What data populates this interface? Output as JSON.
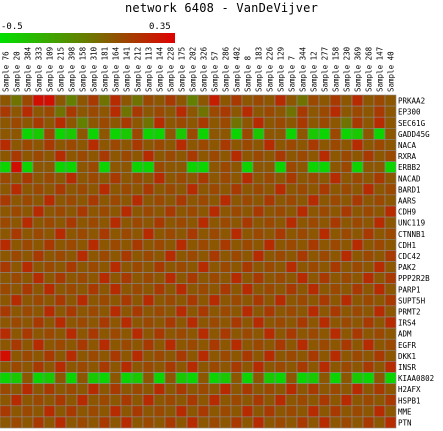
{
  "title": "network 6408 - VanDeVijver",
  "legend": {
    "min_label": "-0.5",
    "max_label": "0.35",
    "low_color": "#00e000",
    "high_color": "#e00000"
  },
  "chart_data": {
    "type": "heatmap",
    "title": "network 6408 - VanDeVijver",
    "value_range": [
      -0.5,
      0.35
    ],
    "columns": [
      "Sample 76",
      "Sample 20",
      "Sample 384",
      "Sample 333",
      "Sample 109",
      "Sample 215",
      "Sample 398",
      "Sample 158",
      "Sample 310",
      "Sample 181",
      "Sample 164",
      "Sample 141",
      "Sample 212",
      "Sample 113",
      "Sample 144",
      "Sample 228",
      "Sample 175",
      "Sample 202",
      "Sample 326",
      "Sample 57",
      "Sample 286",
      "Sample 402",
      "Sample 8",
      "Sample 183",
      "Sample 226",
      "Sample 129",
      "Sample 7",
      "Sample 344",
      "Sample 12",
      "Sample 277",
      "Sample 158",
      "Sample 230",
      "Sample 369",
      "Sample 268",
      "Sample 147",
      "Sample 40"
    ],
    "rows": [
      "PRKAA2",
      "EP300",
      "SEC61G",
      "GADD45G",
      "NACA",
      "RXRA",
      "ERBB2",
      "NACAD",
      "BARD1",
      "AARS",
      "CDH9",
      "UNC119",
      "CTNNB1",
      "CDH1",
      "CDC42",
      "PAK2",
      "PPP2R2B",
      "PARP1",
      "SUPT5H",
      "PRMT2",
      "IRS4",
      "ADM",
      "EGFR",
      "DKK1",
      "INSR",
      "KIAA0802",
      "H2AFX",
      "HSPB1",
      "MME",
      "PTN"
    ],
    "values": [
      [
        0.05,
        -0.05,
        0.1,
        0.3,
        0.3,
        0.05,
        -0.1,
        0.05,
        0.15,
        -0.05,
        0.2,
        0.05,
        -0.05,
        0.1,
        0.05,
        0.15,
        0.05,
        -0.1,
        0.05,
        0.25,
        0.05,
        0.15,
        0.05,
        0.1,
        0.05,
        0.2,
        0.05,
        -0.05,
        0.1,
        0.05,
        0.15,
        0.05,
        0.2,
        0.05,
        0.1,
        0.05
      ],
      [
        0.15,
        0.05,
        0.2,
        0.05,
        0.1,
        -0.05,
        0.15,
        0.05,
        0.1,
        0.05,
        0.2,
        -0.05,
        0.15,
        0.05,
        0.1,
        0.05,
        0.2,
        0.05,
        -0.05,
        0.1,
        0.15,
        0.05,
        0.2,
        0.05,
        0.1,
        0.05,
        -0.05,
        0.15,
        0.05,
        0.1,
        0.2,
        0.05,
        0.1,
        0.05,
        0.15,
        0.05
      ],
      [
        0.05,
        0.1,
        0.05,
        0.15,
        0.05,
        0.2,
        0.05,
        -0.1,
        0.05,
        0.1,
        0.05,
        0.15,
        0.05,
        -0.05,
        0.2,
        0.05,
        0.1,
        0.05,
        0.15,
        0.05,
        0.1,
        -0.05,
        0.05,
        0.2,
        0.05,
        0.1,
        0.05,
        0.15,
        0.05,
        0.1,
        0.05,
        -0.05,
        0.15,
        0.05,
        0.2,
        0.05
      ],
      [
        0.05,
        0.05,
        -0.45,
        -0.4,
        0.1,
        -0.45,
        -0.4,
        0.05,
        -0.45,
        0.05,
        -0.45,
        -0.4,
        0.1,
        -0.45,
        -0.45,
        0.05,
        -0.4,
        0.1,
        -0.45,
        0.05,
        0.05,
        -0.45,
        0.1,
        -0.4,
        0.05,
        0.05,
        -0.45,
        0.05,
        -0.4,
        -0.45,
        0.1,
        -0.45,
        -0.4,
        0.05,
        -0.45,
        0.05
      ],
      [
        0.2,
        0.05,
        0.1,
        0.05,
        0.15,
        0.05,
        0.1,
        0.05,
        0.2,
        0.05,
        0.1,
        0.05,
        0.15,
        0.05,
        0.1,
        0.05,
        0.2,
        0.05,
        0.1,
        0.05,
        0.15,
        0.05,
        0.1,
        0.05,
        0.2,
        0.05,
        0.1,
        0.05,
        0.15,
        0.05,
        0.1,
        0.05,
        0.2,
        0.05,
        0.1,
        0.05
      ],
      [
        0.05,
        0.15,
        0.05,
        0.1,
        0.05,
        0.2,
        0.05,
        0.1,
        0.05,
        0.15,
        0.05,
        0.1,
        0.05,
        0.2,
        0.05,
        0.1,
        0.05,
        0.15,
        0.05,
        0.1,
        0.05,
        0.2,
        0.05,
        0.1,
        0.05,
        0.15,
        0.05,
        0.1,
        0.05,
        0.2,
        0.05,
        0.1,
        0.05,
        0.15,
        0.05,
        0.1
      ],
      [
        -0.45,
        0.3,
        -0.45,
        0.05,
        0.05,
        -0.45,
        -0.45,
        0.05,
        0.1,
        -0.45,
        0.05,
        0.05,
        -0.45,
        -0.45,
        0.1,
        0.05,
        0.05,
        -0.45,
        -0.45,
        0.05,
        0.1,
        0.05,
        -0.45,
        0.05,
        0.05,
        -0.45,
        0.1,
        0.05,
        -0.45,
        -0.45,
        0.05,
        0.1,
        -0.45,
        0.05,
        0.05,
        -0.45
      ],
      [
        0.1,
        0.05,
        0.15,
        0.05,
        0.1,
        0.05,
        0.2,
        0.05,
        0.1,
        0.05,
        0.15,
        0.05,
        0.1,
        0.05,
        0.2,
        0.05,
        0.1,
        0.05,
        0.15,
        0.05,
        0.1,
        0.05,
        0.2,
        0.05,
        0.1,
        0.05,
        0.15,
        0.05,
        0.1,
        0.05,
        0.2,
        0.05,
        0.1,
        0.05,
        0.15,
        0.05
      ],
      [
        0.05,
        0.2,
        0.05,
        0.1,
        0.05,
        0.15,
        0.05,
        0.1,
        0.05,
        0.2,
        0.05,
        0.1,
        0.05,
        0.15,
        0.05,
        0.1,
        0.05,
        0.2,
        0.05,
        0.1,
        0.05,
        0.15,
        0.05,
        0.1,
        0.05,
        0.2,
        0.05,
        0.1,
        0.05,
        0.15,
        0.05,
        0.1,
        0.05,
        0.2,
        0.05,
        0.1
      ],
      [
        0.15,
        0.05,
        0.1,
        0.05,
        0.2,
        0.05,
        0.1,
        0.05,
        0.15,
        0.05,
        0.1,
        0.05,
        0.2,
        0.05,
        0.1,
        0.05,
        0.15,
        0.05,
        0.1,
        0.05,
        0.2,
        0.05,
        0.1,
        0.05,
        0.15,
        0.05,
        0.1,
        0.05,
        0.2,
        0.05,
        0.1,
        0.05,
        0.15,
        0.05,
        0.1,
        0.05
      ],
      [
        0.05,
        0.1,
        0.05,
        0.2,
        0.05,
        0.1,
        0.05,
        0.15,
        0.05,
        0.1,
        0.05,
        0.2,
        0.05,
        0.1,
        0.05,
        0.15,
        0.05,
        0.1,
        0.05,
        0.2,
        0.05,
        0.1,
        0.05,
        0.15,
        0.05,
        0.1,
        0.05,
        0.2,
        0.05,
        0.1,
        0.05,
        0.15,
        0.05,
        0.1,
        0.05,
        0.2
      ],
      [
        0.1,
        0.05,
        0.2,
        0.05,
        0.1,
        0.05,
        0.15,
        0.05,
        0.1,
        0.05,
        0.2,
        0.05,
        0.1,
        0.05,
        0.15,
        0.05,
        0.1,
        0.05,
        0.2,
        0.05,
        0.1,
        0.05,
        0.15,
        0.05,
        0.1,
        0.05,
        0.2,
        0.05,
        0.1,
        0.05,
        0.15,
        0.05,
        0.1,
        0.05,
        0.2,
        0.05
      ],
      [
        0.05,
        0.15,
        0.05,
        0.1,
        0.05,
        0.2,
        0.05,
        0.1,
        0.05,
        0.15,
        0.05,
        0.1,
        0.05,
        0.2,
        0.05,
        0.1,
        0.05,
        0.15,
        0.05,
        0.1,
        0.05,
        0.2,
        0.05,
        0.1,
        0.05,
        0.15,
        0.05,
        0.1,
        0.05,
        0.2,
        0.05,
        0.1,
        0.05,
        0.15,
        0.05,
        0.1
      ],
      [
        0.2,
        0.05,
        0.1,
        0.05,
        0.15,
        0.05,
        0.1,
        0.05,
        0.2,
        0.05,
        0.1,
        0.05,
        0.15,
        0.05,
        0.1,
        0.05,
        0.2,
        0.05,
        0.1,
        0.05,
        0.15,
        0.05,
        0.1,
        0.05,
        0.2,
        0.05,
        0.1,
        0.05,
        0.15,
        0.05,
        0.1,
        0.05,
        0.2,
        0.05,
        0.1,
        0.05
      ],
      [
        0.05,
        0.1,
        0.05,
        0.15,
        0.05,
        0.1,
        0.05,
        0.2,
        0.05,
        0.1,
        0.05,
        0.15,
        0.05,
        0.1,
        0.05,
        0.2,
        0.05,
        0.1,
        0.05,
        0.15,
        0.05,
        0.1,
        0.05,
        0.2,
        0.05,
        0.1,
        0.05,
        0.15,
        0.05,
        0.1,
        0.05,
        0.2,
        0.05,
        0.1,
        0.05,
        0.15
      ],
      [
        0.15,
        0.05,
        0.2,
        0.05,
        0.1,
        0.05,
        0.15,
        0.05,
        0.1,
        0.05,
        0.2,
        0.05,
        0.1,
        0.05,
        0.15,
        0.05,
        0.1,
        0.05,
        0.2,
        0.05,
        0.1,
        0.05,
        0.15,
        0.05,
        0.1,
        0.05,
        0.2,
        0.05,
        0.1,
        0.05,
        0.15,
        0.05,
        0.1,
        0.05,
        0.2,
        0.05
      ],
      [
        0.05,
        0.1,
        0.05,
        0.2,
        0.05,
        0.15,
        0.05,
        0.1,
        0.05,
        0.2,
        0.05,
        0.15,
        0.05,
        0.1,
        0.05,
        0.2,
        0.05,
        0.15,
        0.05,
        0.1,
        0.05,
        0.2,
        0.05,
        0.15,
        0.05,
        0.1,
        0.05,
        0.2,
        0.05,
        0.15,
        0.05,
        0.1,
        0.05,
        0.2,
        0.05,
        0.15
      ],
      [
        0.1,
        0.05,
        0.15,
        0.05,
        0.2,
        0.05,
        0.1,
        0.05,
        0.15,
        0.05,
        0.2,
        0.05,
        0.1,
        0.05,
        0.15,
        0.05,
        0.2,
        0.05,
        0.1,
        0.05,
        0.15,
        0.05,
        0.2,
        0.05,
        0.1,
        0.05,
        0.15,
        0.05,
        0.2,
        0.05,
        0.1,
        0.05,
        0.15,
        0.05,
        0.2,
        0.05
      ],
      [
        0.05,
        0.2,
        0.05,
        0.1,
        0.05,
        0.15,
        0.05,
        0.2,
        0.05,
        0.1,
        0.05,
        0.15,
        0.05,
        0.2,
        0.05,
        0.1,
        0.05,
        0.15,
        0.05,
        0.2,
        0.05,
        0.1,
        0.05,
        0.15,
        0.05,
        0.2,
        0.05,
        0.1,
        0.05,
        0.15,
        0.05,
        0.2,
        0.05,
        0.1,
        0.05,
        0.15
      ],
      [
        0.15,
        0.05,
        0.1,
        0.05,
        0.2,
        0.05,
        0.15,
        0.05,
        0.1,
        0.05,
        0.2,
        0.05,
        0.15,
        0.05,
        0.1,
        0.05,
        0.2,
        0.05,
        0.15,
        0.05,
        0.1,
        0.05,
        0.2,
        0.05,
        0.15,
        0.05,
        0.1,
        0.05,
        0.2,
        0.05,
        0.15,
        0.05,
        0.1,
        0.05,
        0.2,
        0.05
      ],
      [
        0.05,
        0.1,
        0.05,
        0.15,
        0.05,
        0.2,
        0.05,
        0.1,
        0.05,
        0.15,
        0.05,
        0.2,
        0.05,
        0.1,
        0.05,
        0.15,
        0.05,
        0.2,
        0.05,
        0.1,
        0.05,
        0.15,
        0.05,
        0.2,
        0.05,
        0.1,
        0.05,
        0.15,
        0.05,
        0.2,
        0.05,
        0.1,
        0.05,
        0.15,
        0.05,
        0.2
      ],
      [
        0.2,
        0.05,
        0.15,
        0.05,
        0.1,
        0.05,
        0.2,
        0.05,
        0.15,
        0.05,
        0.1,
        0.05,
        0.2,
        0.05,
        0.15,
        0.05,
        0.1,
        0.05,
        0.2,
        0.05,
        0.15,
        0.05,
        0.1,
        0.05,
        0.2,
        0.05,
        0.15,
        0.05,
        0.1,
        0.05,
        0.2,
        0.05,
        0.15,
        0.05,
        0.1,
        0.05
      ],
      [
        0.05,
        0.15,
        0.05,
        0.2,
        0.05,
        0.1,
        0.05,
        0.15,
        0.05,
        0.2,
        0.05,
        0.1,
        0.05,
        0.15,
        0.05,
        0.2,
        0.05,
        0.1,
        0.05,
        0.15,
        0.05,
        0.2,
        0.05,
        0.1,
        0.05,
        0.15,
        0.05,
        0.2,
        0.05,
        0.1,
        0.05,
        0.15,
        0.05,
        0.2,
        0.05,
        0.1
      ],
      [
        0.3,
        0.05,
        0.1,
        0.05,
        0.15,
        0.05,
        0.2,
        0.05,
        0.1,
        0.05,
        0.15,
        0.05,
        0.2,
        0.05,
        0.1,
        0.05,
        0.15,
        0.05,
        0.2,
        0.05,
        0.1,
        0.05,
        0.15,
        0.05,
        0.2,
        0.05,
        0.1,
        0.05,
        0.15,
        0.05,
        0.2,
        0.05,
        0.1,
        0.05,
        0.15,
        0.05
      ],
      [
        0.05,
        0.1,
        0.05,
        0.15,
        0.05,
        0.2,
        0.05,
        0.1,
        0.05,
        0.15,
        0.05,
        0.2,
        0.05,
        0.1,
        0.05,
        0.15,
        0.05,
        0.2,
        0.05,
        0.1,
        0.05,
        0.15,
        0.05,
        0.2,
        0.05,
        0.1,
        0.05,
        0.15,
        0.05,
        0.2,
        0.05,
        0.1,
        0.05,
        0.15,
        0.05,
        0.2
      ],
      [
        -0.45,
        -0.4,
        0.05,
        -0.45,
        -0.4,
        0.05,
        -0.45,
        0.05,
        -0.4,
        -0.45,
        0.05,
        -0.45,
        -0.4,
        0.05,
        -0.45,
        0.05,
        -0.4,
        -0.45,
        0.05,
        -0.45,
        -0.4,
        0.05,
        -0.45,
        0.05,
        -0.4,
        -0.45,
        0.05,
        -0.45,
        -0.4,
        0.05,
        -0.45,
        0.05,
        -0.4,
        -0.45,
        0.05,
        -0.45
      ],
      [
        0.1,
        0.05,
        0.2,
        0.05,
        0.15,
        0.05,
        0.1,
        0.05,
        0.2,
        0.05,
        0.15,
        0.05,
        0.1,
        0.05,
        0.2,
        0.05,
        0.15,
        0.05,
        0.1,
        0.05,
        0.2,
        0.05,
        0.15,
        0.05,
        0.1,
        0.05,
        0.2,
        0.05,
        0.15,
        0.05,
        0.1,
        0.05,
        0.2,
        0.05,
        0.15,
        0.05
      ],
      [
        0.05,
        0.2,
        0.05,
        0.1,
        0.05,
        0.15,
        0.05,
        0.2,
        0.05,
        0.1,
        0.05,
        0.15,
        0.05,
        0.2,
        0.05,
        0.1,
        0.05,
        0.15,
        0.05,
        0.2,
        0.05,
        0.1,
        0.05,
        0.15,
        0.05,
        0.2,
        0.05,
        0.1,
        0.05,
        0.15,
        0.05,
        0.2,
        0.05,
        0.1,
        0.05,
        0.15
      ],
      [
        0.15,
        0.05,
        0.1,
        0.05,
        0.2,
        0.05,
        0.15,
        0.05,
        0.1,
        0.05,
        0.2,
        0.05,
        0.15,
        0.05,
        0.1,
        0.05,
        0.2,
        0.05,
        0.15,
        0.05,
        0.1,
        0.05,
        0.2,
        0.05,
        0.15,
        0.05,
        0.1,
        0.05,
        0.2,
        0.05,
        0.15,
        0.05,
        0.1,
        0.05,
        0.2,
        0.05
      ],
      [
        0.05,
        0.1,
        0.05,
        0.15,
        0.05,
        0.2,
        0.05,
        0.1,
        0.05,
        0.15,
        0.05,
        0.2,
        0.05,
        0.1,
        0.05,
        0.15,
        0.05,
        0.2,
        0.05,
        0.1,
        0.05,
        0.15,
        0.05,
        0.2,
        0.05,
        0.1,
        0.05,
        0.15,
        0.05,
        0.2,
        0.05,
        0.1,
        0.05,
        0.15,
        0.05,
        0.2
      ]
    ]
  }
}
